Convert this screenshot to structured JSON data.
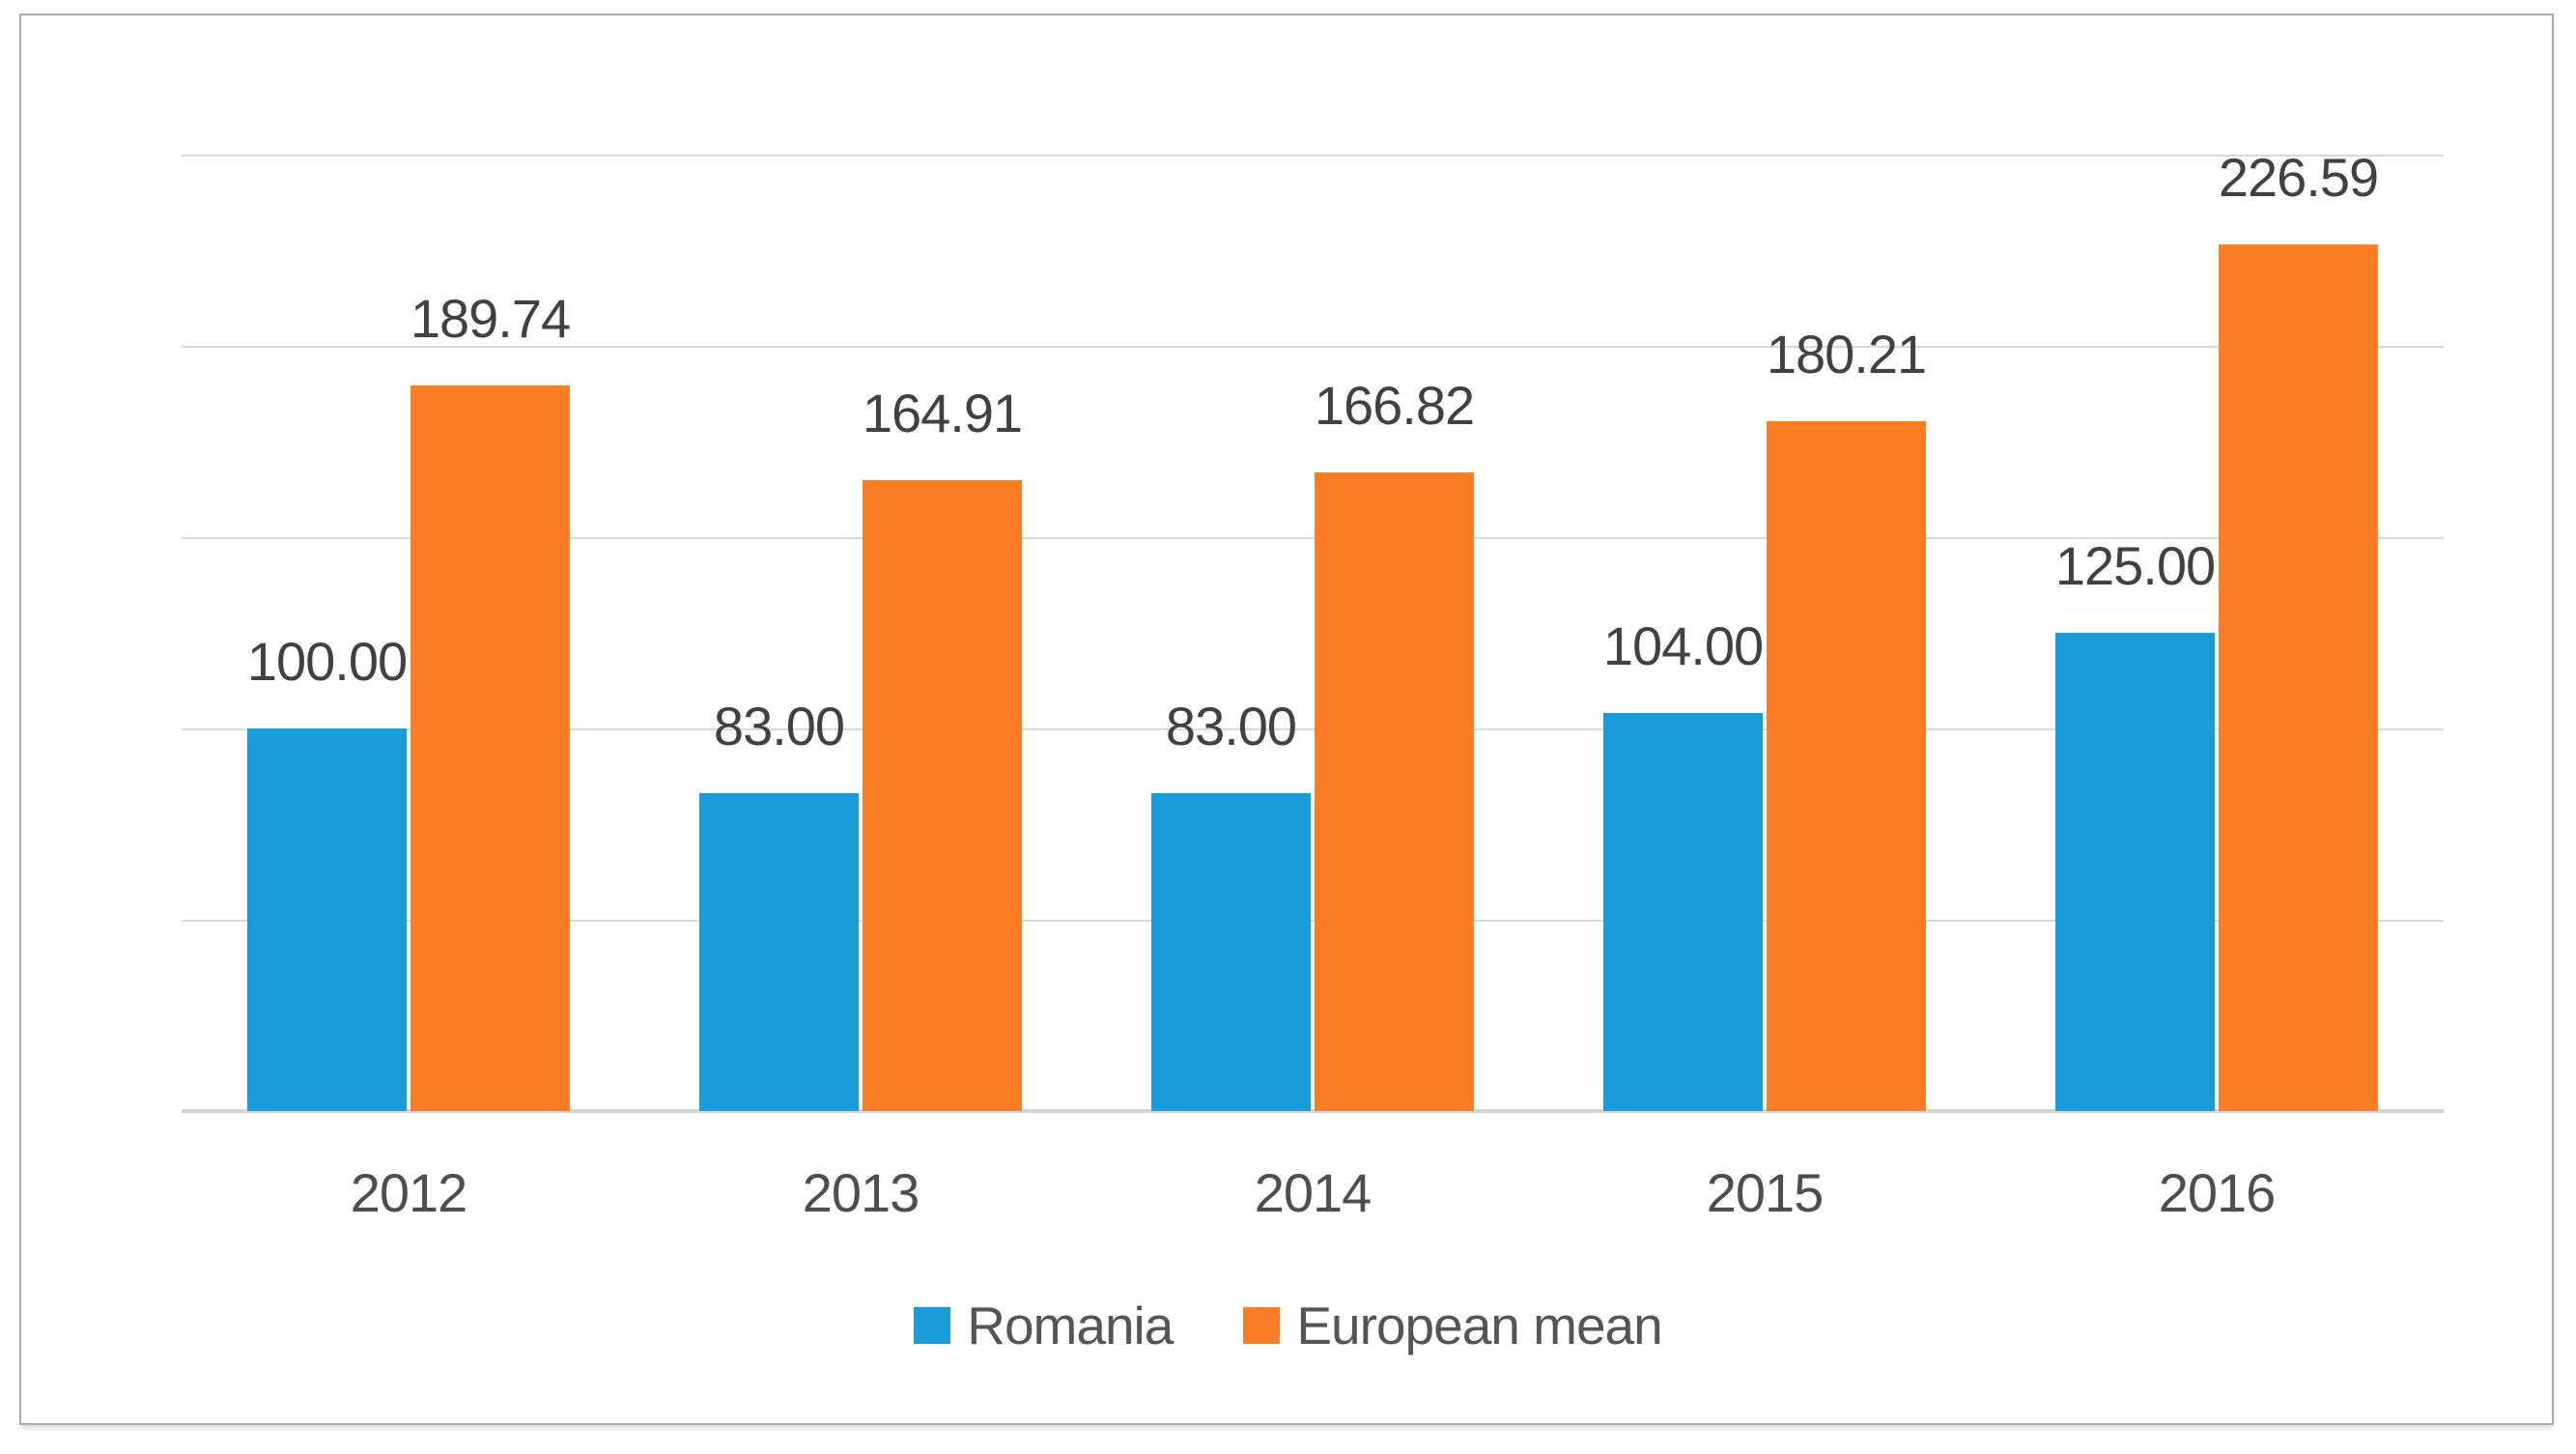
{
  "chart_data": {
    "type": "bar",
    "title": "",
    "xlabel": "",
    "ylabel": "",
    "categories": [
      "2012",
      "2013",
      "2014",
      "2015",
      "2016"
    ],
    "series": [
      {
        "name": "Romania",
        "color": "#199CD8",
        "values": [
          100.0,
          83.0,
          83.0,
          104.0,
          125.0
        ],
        "labels": [
          "100.00",
          "83.00",
          "83.00",
          "104.00",
          "125.00"
        ]
      },
      {
        "name": "European mean",
        "color": "#FB7D26",
        "values": [
          189.74,
          164.91,
          166.82,
          180.21,
          226.59
        ],
        "labels": [
          "189.74",
          "164.91",
          "166.82",
          "180.21",
          "226.59"
        ]
      }
    ],
    "ylim": [
      0,
      250
    ],
    "gridline_step": 50,
    "grid": true,
    "y_axis_labels_visible": false,
    "legend_position": "bottom",
    "legend": [
      "Romania",
      "European mean"
    ]
  },
  "style": {
    "gridline_color": "#D9D9D9",
    "axis_line_color": "#D4D4D4",
    "frame_border_color": "#ABABAB",
    "data_label_color": "#414141",
    "axis_label_color": "#4E4E4E",
    "legend_text_color": "#555555",
    "background": "#FFFFFF"
  }
}
